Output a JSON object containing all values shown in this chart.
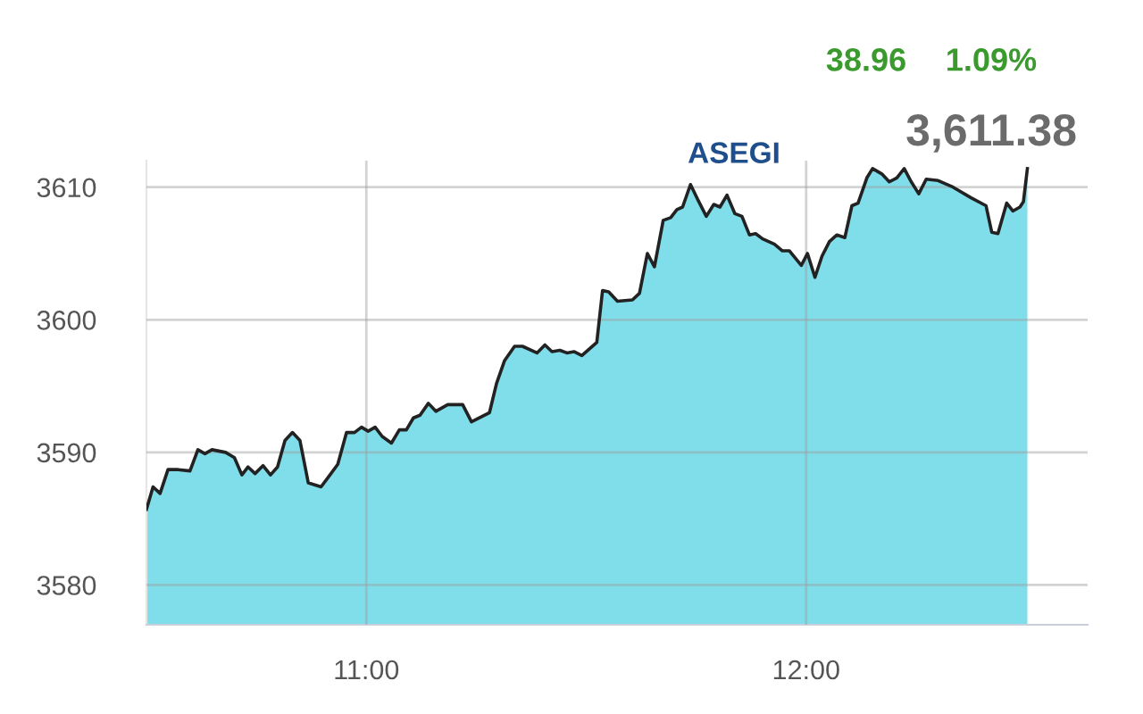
{
  "chart_data": {
    "type": "area",
    "title": "ASEGI",
    "annotations": [
      "38.96",
      "1.09%",
      "3,611.38"
    ],
    "x": [
      10.5,
      10.515,
      10.531,
      10.549,
      10.572,
      10.599,
      10.617,
      10.633,
      10.649,
      10.68,
      10.7,
      10.717,
      10.731,
      10.747,
      10.765,
      10.782,
      10.798,
      10.815,
      10.832,
      10.849,
      10.868,
      10.897,
      10.915,
      10.935,
      10.955,
      10.973,
      10.989,
      11.004,
      11.02,
      11.036,
      11.057,
      11.075,
      11.091,
      11.107,
      11.122,
      11.141,
      11.158,
      11.185,
      11.219,
      11.239,
      11.28,
      11.296,
      11.314,
      11.337,
      11.355,
      11.388,
      11.406,
      11.422,
      11.44,
      11.456,
      11.472,
      11.49,
      11.524,
      11.537,
      11.551,
      11.571,
      11.605,
      11.621,
      11.639,
      11.655,
      11.675,
      11.692,
      11.706,
      11.719,
      11.737,
      11.753,
      11.773,
      11.79,
      11.804,
      11.82,
      11.838,
      11.854,
      11.871,
      11.885,
      11.901,
      11.928,
      11.946,
      11.962,
      11.989,
      12.003,
      12.02,
      12.036,
      12.053,
      12.07,
      12.088,
      12.104,
      12.118,
      12.138,
      12.151,
      12.172,
      12.189,
      12.206,
      12.223,
      12.239,
      12.256,
      12.273,
      12.3,
      12.334,
      12.375,
      12.409,
      12.422,
      12.436,
      12.456,
      12.47,
      12.486,
      12.494,
      12.503
    ],
    "series": [
      {
        "color": "#80deea",
        "values": [
          3585.7,
          3587.4,
          3586.9,
          3588.7,
          3588.7,
          3588.6,
          3590.2,
          3589.9,
          3590.2,
          3590.0,
          3589.6,
          3588.3,
          3588.9,
          3588.4,
          3589.0,
          3588.3,
          3588.9,
          3590.9,
          3591.5,
          3590.9,
          3587.7,
          3587.4,
          3588.2,
          3589.1,
          3591.5,
          3591.5,
          3591.9,
          3591.6,
          3591.9,
          3591.2,
          3590.7,
          3591.7,
          3591.7,
          3592.6,
          3592.8,
          3593.7,
          3593.1,
          3593.6,
          3593.6,
          3592.3,
          3593.0,
          3595.2,
          3596.9,
          3598.0,
          3598.0,
          3597.5,
          3598.1,
          3597.6,
          3597.7,
          3597.5,
          3597.6,
          3597.3,
          3598.3,
          3602.2,
          3602.1,
          3601.4,
          3601.5,
          3602.0,
          3605.0,
          3604.0,
          3607.5,
          3607.7,
          3608.3,
          3608.5,
          3610.2,
          3609.1,
          3607.8,
          3608.7,
          3608.5,
          3609.4,
          3608.0,
          3607.8,
          3606.4,
          3606.5,
          3606.1,
          3605.7,
          3605.2,
          3605.2,
          3604.1,
          3605.0,
          3603.2,
          3604.8,
          3605.9,
          3606.4,
          3606.2,
          3608.6,
          3608.8,
          3610.7,
          3611.4,
          3611.0,
          3610.4,
          3610.7,
          3611.4,
          3610.4,
          3609.5,
          3610.6,
          3610.5,
          3610.0,
          3609.2,
          3608.6,
          3606.6,
          3606.5,
          3608.8,
          3608.2,
          3608.5,
          3608.9,
          3611.4
        ]
      }
    ],
    "xlim": [
      10.5,
      12.64
    ],
    "ylim": [
      3577,
      3612
    ],
    "xticks": [
      {
        "value": 11,
        "label": "11:00"
      },
      {
        "value": 12,
        "label": "12:00"
      }
    ],
    "yticks": [
      3580,
      3590,
      3600,
      3610
    ],
    "grid": true
  }
}
